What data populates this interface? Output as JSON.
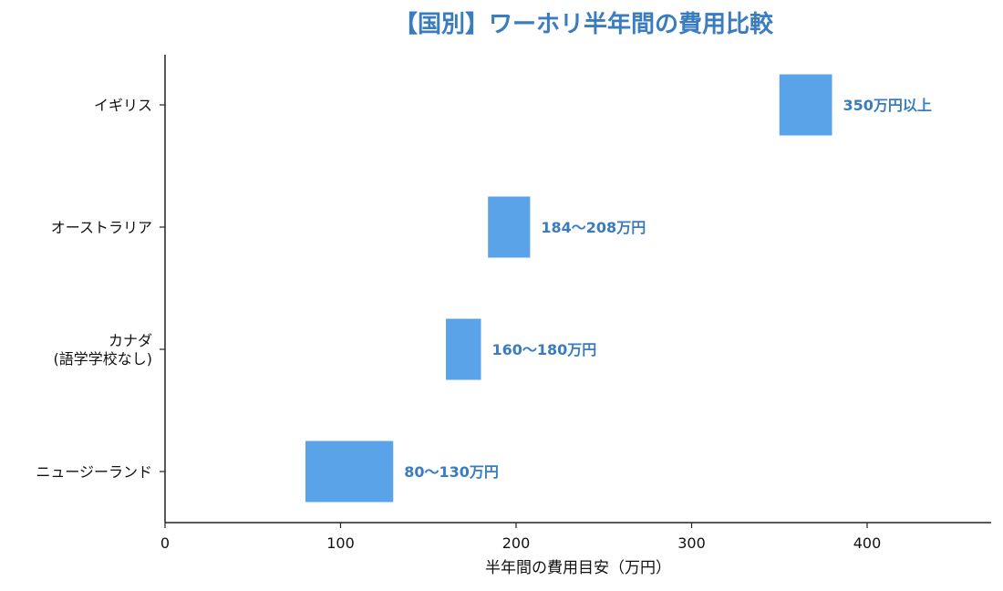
{
  "chart_data": {
    "type": "bar",
    "orientation": "horizontal-range",
    "title": "【国別】ワーホリ半年間の費用比較",
    "xlabel": "半年間の費用目安（万円）",
    "ylabel": "",
    "xlim": [
      0,
      470
    ],
    "xticks": [
      0,
      100,
      200,
      300,
      400
    ],
    "grid": false,
    "legend": "none",
    "bar_color": "#5ba3e8",
    "label_color": "#3a7cc0",
    "categories": [
      {
        "lines": [
          "イギリス"
        ],
        "start": 350,
        "end": 380,
        "label": "350万円以上"
      },
      {
        "lines": [
          "オーストラリア"
        ],
        "start": 184,
        "end": 208,
        "label": "184〜208万円"
      },
      {
        "lines": [
          "カナダ",
          "(語学学校なし)"
        ],
        "start": 160,
        "end": 180,
        "label": "160〜180万円"
      },
      {
        "lines": [
          "ニュージーランド"
        ],
        "start": 80,
        "end": 130,
        "label": "80〜130万円"
      }
    ]
  }
}
